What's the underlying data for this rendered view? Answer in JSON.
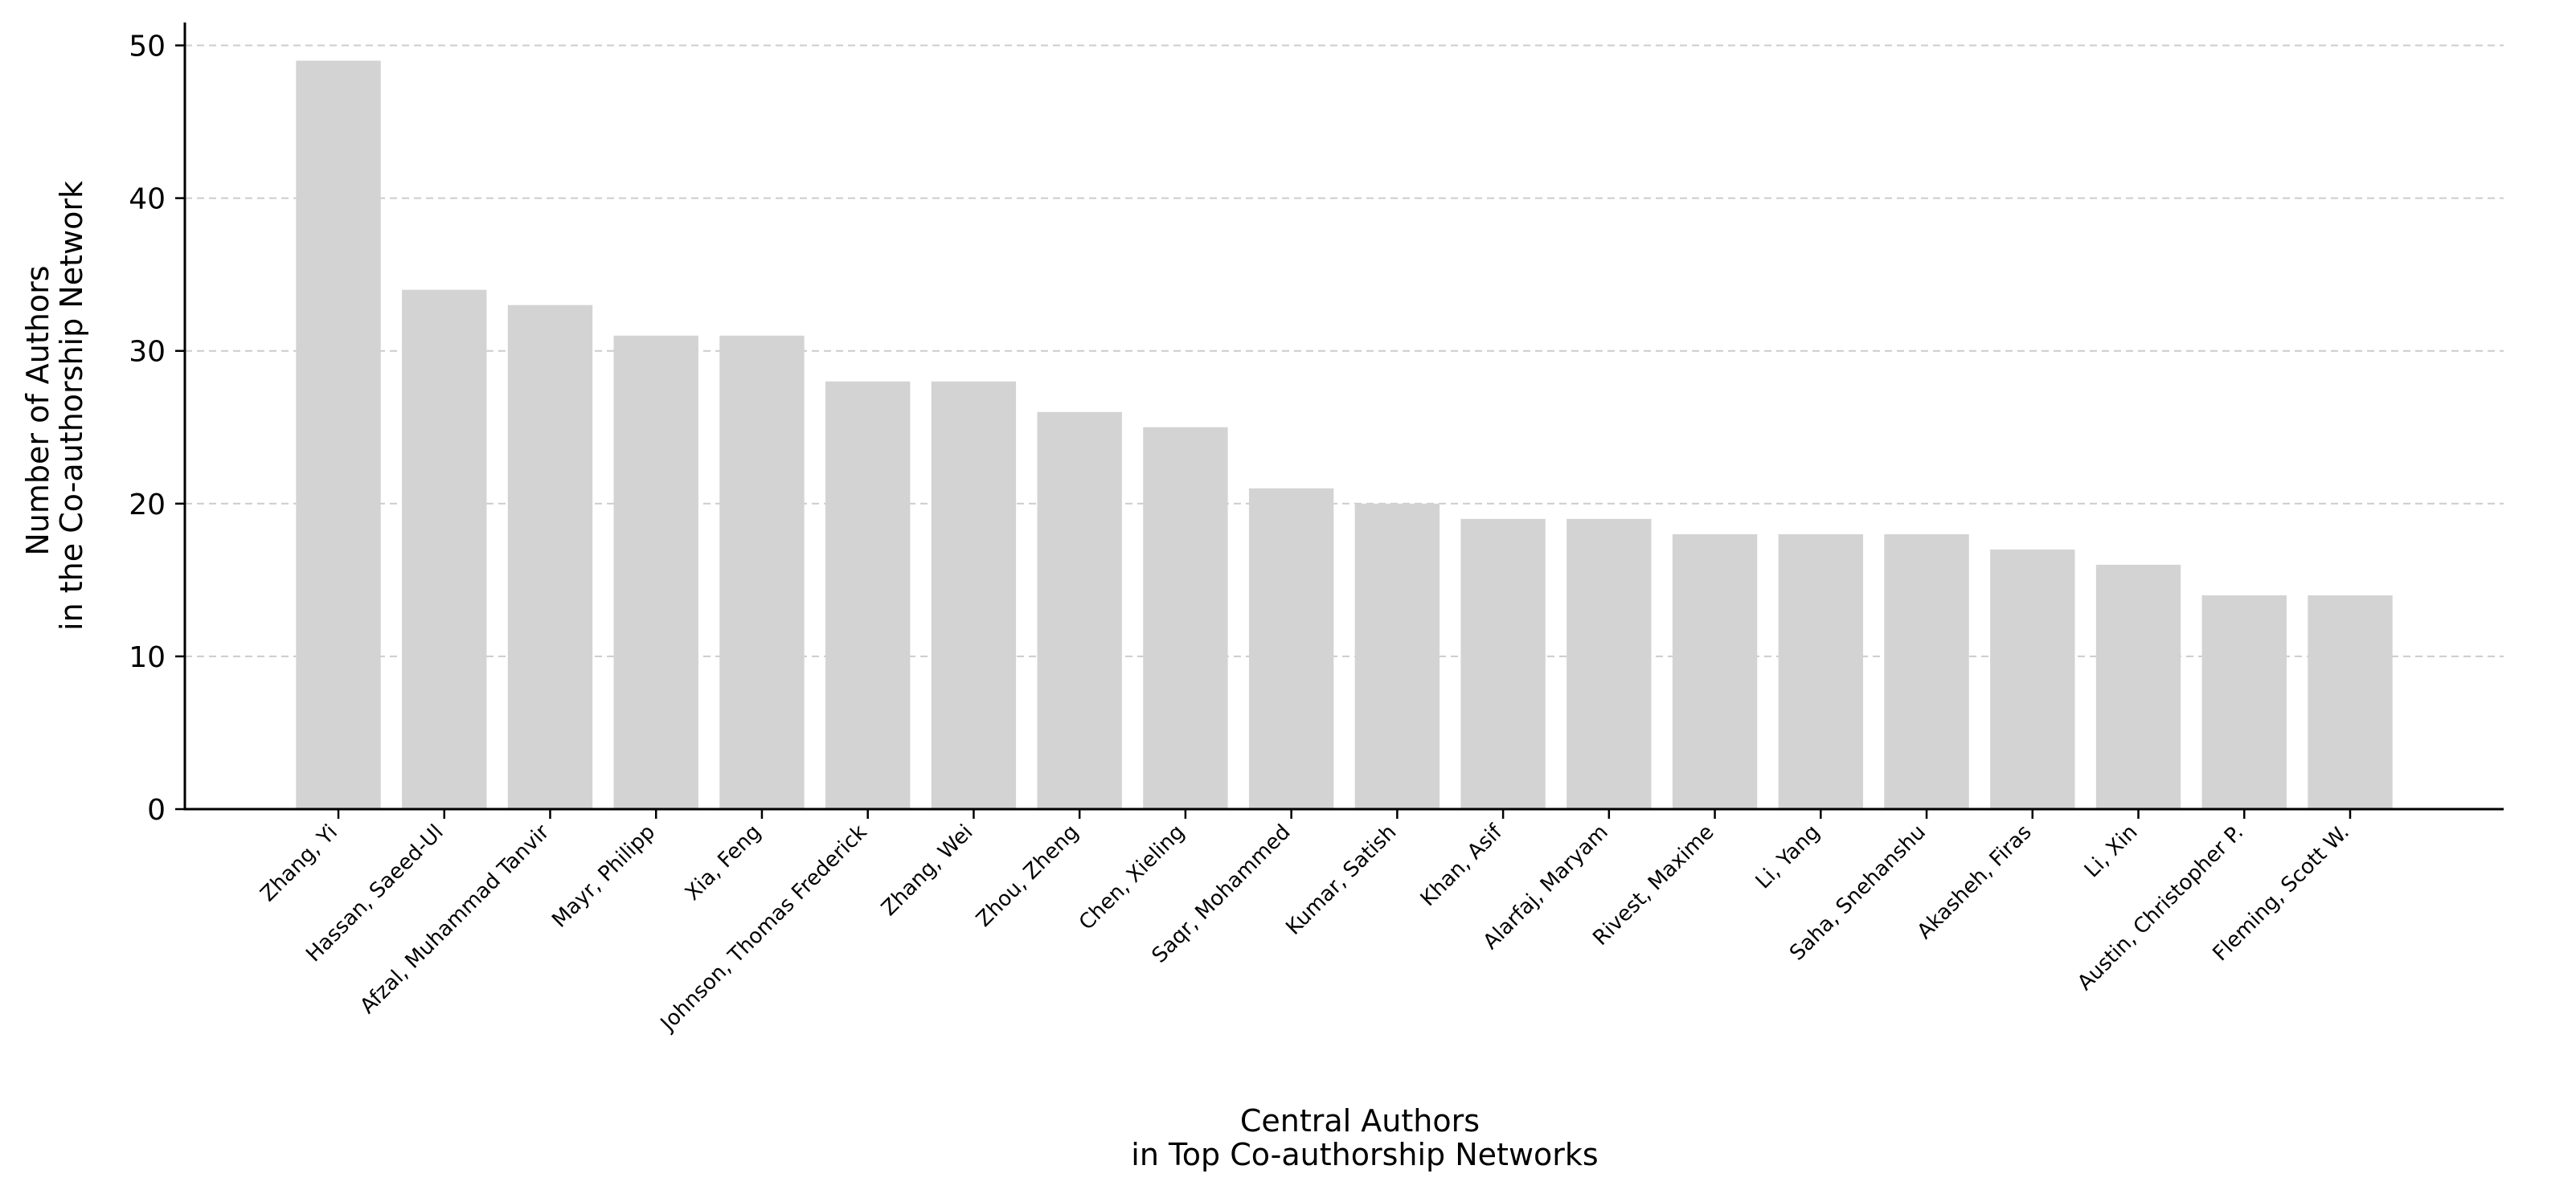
{
  "chart_data": {
    "type": "bar",
    "xlabel": [
      "Central Authors",
      "in Top Co-authorship Networks"
    ],
    "ylabel": [
      "Number of Authors",
      "in the Co-authorship Network"
    ],
    "ylim": [
      0,
      51.5
    ],
    "yticks": [
      0,
      10,
      20,
      30,
      40,
      50
    ],
    "grid": "y-dashed",
    "bar_color": "#d3d3d3",
    "categories": [
      "Zhang, Yi",
      "Hassan, Saeed-Ul",
      "Afzal, Muhammad Tanvir",
      "Mayr, Philipp",
      "Xia, Feng",
      "Johnson, Thomas Frederick",
      "Zhang, Wei",
      "Zhou, Zheng",
      "Chen, Xieling",
      "Saqr, Mohammed",
      "Kumar, Satish",
      "Khan, Asif",
      "Alarfaj, Maryam",
      "Rivest, Maxime",
      "Li, Yang",
      "Saha, Snehanshu",
      "Akasheh, Firas",
      "Li, Xin",
      "Austin, Christopher P.",
      "Fleming, Scott W."
    ],
    "values": [
      49,
      34,
      33,
      31,
      31,
      28,
      28,
      26,
      25,
      21,
      20,
      19,
      19,
      18,
      18,
      18,
      17,
      16,
      14,
      14
    ]
  }
}
